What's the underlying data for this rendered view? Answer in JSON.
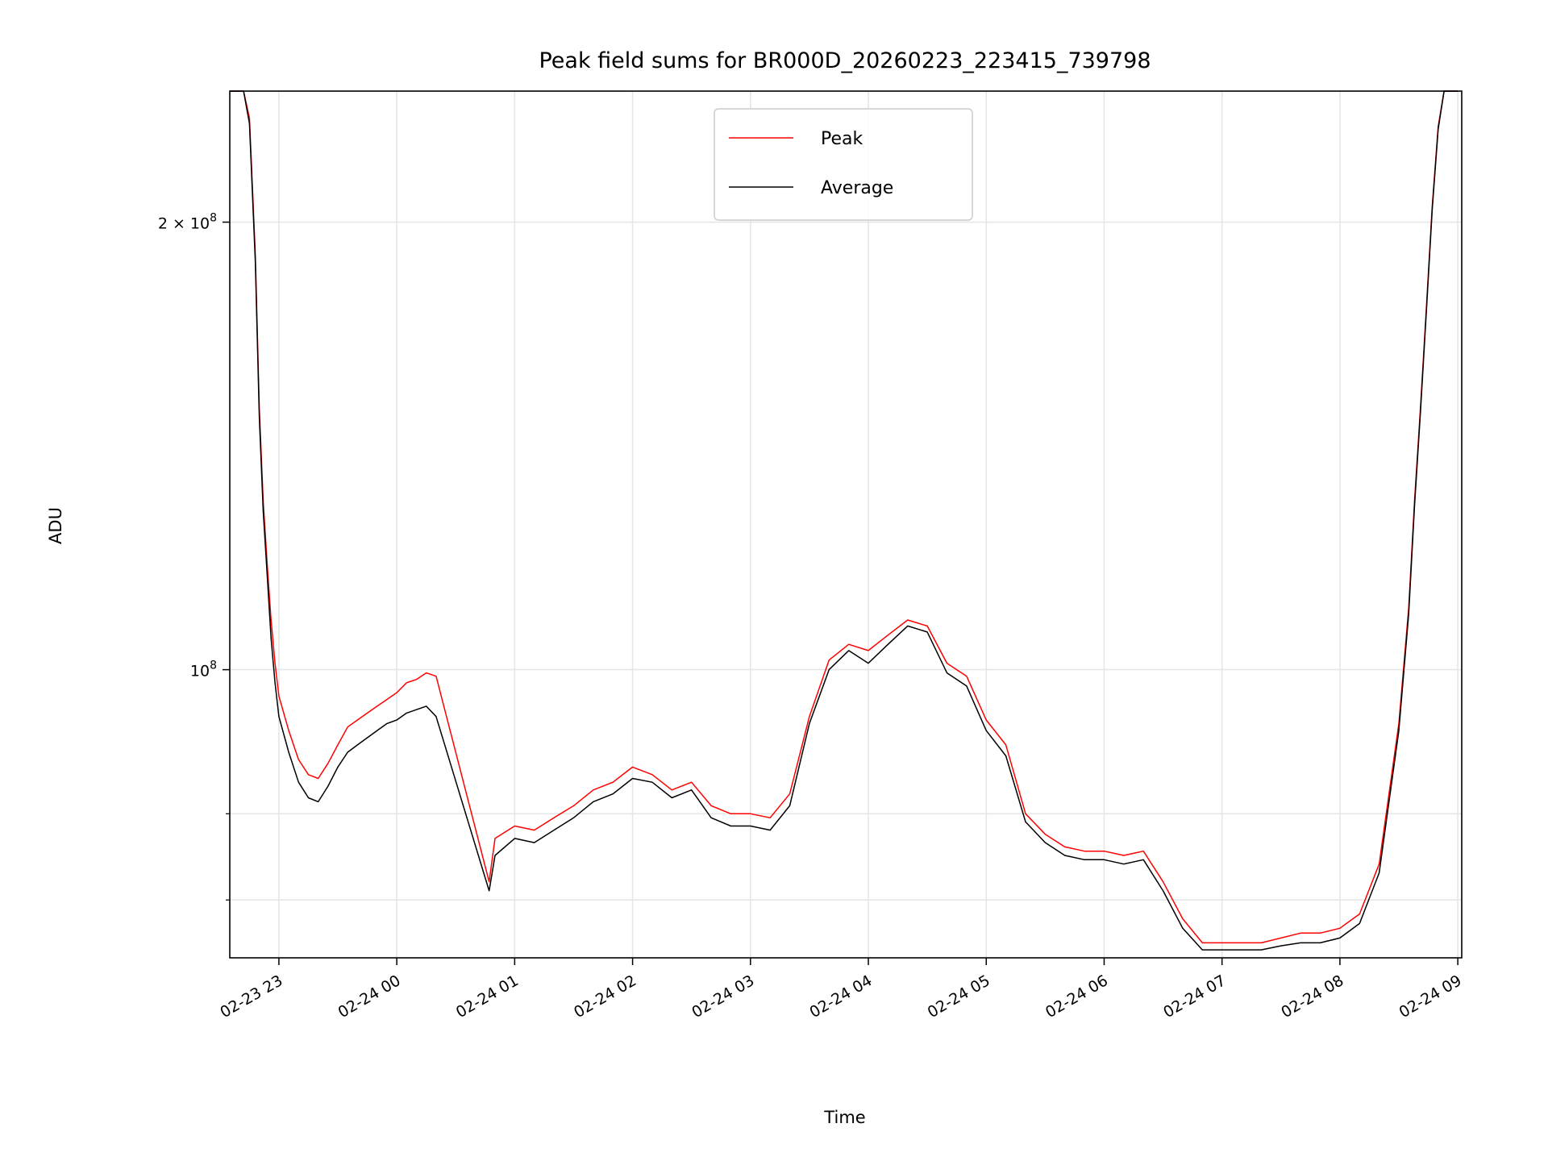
{
  "chart_data": {
    "type": "line",
    "title": "Peak field sums for BR000D_20260223_223415_739798",
    "xlabel": "Time",
    "ylabel": "ADU",
    "y_scale": "log",
    "ylim": [
      64000000,
      245000000
    ],
    "xlim": [
      "02-23 22:35",
      "02-24 09:02"
    ],
    "x_tick_labels": [
      "02-23 23",
      "02-24 00",
      "02-24 01",
      "02-24 02",
      "02-24 03",
      "02-24 04",
      "02-24 05",
      "02-24 06",
      "02-24 07",
      "02-24 08",
      "02-24 09"
    ],
    "x_tick_values": [
      "02-23 23:00",
      "02-24 00:00",
      "02-24 01:00",
      "02-24 02:00",
      "02-24 03:00",
      "02-24 04:00",
      "02-24 05:00",
      "02-24 06:00",
      "02-24 07:00",
      "02-24 08:00",
      "02-24 09:00"
    ],
    "y_tick_labels": [
      {
        "value": 200000000,
        "base": "2 × 10",
        "exp": "8"
      },
      {
        "value": 100000000,
        "base": "10",
        "exp": "8"
      }
    ],
    "y_minor_ticks": [
      70000000,
      80000000
    ],
    "grid": true,
    "legend": "top-center",
    "series": [
      {
        "name": "Peak",
        "color": "#ff0000",
        "x": [
          "02-23 22:35",
          "02-23 22:42",
          "02-23 22:45",
          "02-23 22:48",
          "02-23 22:50",
          "02-23 22:52",
          "02-23 22:54",
          "02-23 22:56",
          "02-23 22:58",
          "02-23 23:00",
          "02-23 23:05",
          "02-23 23:10",
          "02-23 23:15",
          "02-23 23:20",
          "02-23 23:25",
          "02-23 23:30",
          "02-23 23:35",
          "02-23 23:40",
          "02-23 23:45",
          "02-23 23:50",
          "02-23 23:55",
          "02-24 00:00",
          "02-24 00:05",
          "02-24 00:10",
          "02-24 00:15",
          "02-24 00:20",
          "02-24 00:47",
          "02-24 00:50",
          "02-24 01:00",
          "02-24 01:10",
          "02-24 01:20",
          "02-24 01:30",
          "02-24 01:40",
          "02-24 01:50",
          "02-24 02:00",
          "02-24 02:10",
          "02-24 02:20",
          "02-24 02:30",
          "02-24 02:40",
          "02-24 02:50",
          "02-24 03:00",
          "02-24 03:10",
          "02-24 03:20",
          "02-24 03:30",
          "02-24 03:40",
          "02-24 03:50",
          "02-24 04:00",
          "02-24 04:10",
          "02-24 04:20",
          "02-24 04:30",
          "02-24 04:40",
          "02-24 04:50",
          "02-24 05:00",
          "02-24 05:10",
          "02-24 05:20",
          "02-24 05:30",
          "02-24 05:40",
          "02-24 05:50",
          "02-24 06:00",
          "02-24 06:10",
          "02-24 06:20",
          "02-24 06:30",
          "02-24 06:40",
          "02-24 06:50",
          "02-24 07:00",
          "02-24 07:10",
          "02-24 07:20",
          "02-24 07:30",
          "02-24 07:40",
          "02-24 07:50",
          "02-24 08:00",
          "02-24 08:10",
          "02-24 08:20",
          "02-24 08:30",
          "02-24 08:35",
          "02-24 08:38",
          "02-24 08:41",
          "02-24 08:44",
          "02-24 08:47",
          "02-24 08:50",
          "02-24 08:53",
          "02-24 08:56",
          "02-24 09:00"
        ],
        "values": [
          245000000,
          245000000,
          235000000,
          190000000,
          150000000,
          130000000,
          118000000,
          108000000,
          101000000,
          96000000,
          91000000,
          87000000,
          85000000,
          84500000,
          86500000,
          89000000,
          91500000,
          92500000,
          93500000,
          94500000,
          95500000,
          96500000,
          98000000,
          98500000,
          99500000,
          99000000,
          72000000,
          77000000,
          78500000,
          78000000,
          79500000,
          81000000,
          83000000,
          84000000,
          86000000,
          85000000,
          83000000,
          84000000,
          81000000,
          80000000,
          80000000,
          79500000,
          82500000,
          93000000,
          101500000,
          104000000,
          103000000,
          105500000,
          108000000,
          107000000,
          101000000,
          99000000,
          92500000,
          89000000,
          80000000,
          77500000,
          76000000,
          75500000,
          75500000,
          75000000,
          75500000,
          72000000,
          68000000,
          65500000,
          65500000,
          65500000,
          65500000,
          66000000,
          66500000,
          66500000,
          67000000,
          68500000,
          74000000,
          92000000,
          110000000,
          130000000,
          150000000,
          175000000,
          205000000,
          232000000,
          245000000,
          245000000,
          245000000
        ]
      },
      {
        "name": "Average",
        "color": "#000000",
        "x": [
          "02-23 22:35",
          "02-23 22:42",
          "02-23 22:45",
          "02-23 22:48",
          "02-23 22:50",
          "02-23 22:52",
          "02-23 22:54",
          "02-23 22:56",
          "02-23 22:58",
          "02-23 23:00",
          "02-23 23:05",
          "02-23 23:10",
          "02-23 23:15",
          "02-23 23:20",
          "02-23 23:25",
          "02-23 23:30",
          "02-23 23:35",
          "02-23 23:40",
          "02-23 23:45",
          "02-23 23:50",
          "02-23 23:55",
          "02-24 00:00",
          "02-24 00:05",
          "02-24 00:10",
          "02-24 00:15",
          "02-24 00:20",
          "02-24 00:47",
          "02-24 00:50",
          "02-24 01:00",
          "02-24 01:10",
          "02-24 01:20",
          "02-24 01:30",
          "02-24 01:40",
          "02-24 01:50",
          "02-24 02:00",
          "02-24 02:10",
          "02-24 02:20",
          "02-24 02:30",
          "02-24 02:40",
          "02-24 02:50",
          "02-24 03:00",
          "02-24 03:10",
          "02-24 03:20",
          "02-24 03:30",
          "02-24 03:40",
          "02-24 03:50",
          "02-24 04:00",
          "02-24 04:10",
          "02-24 04:20",
          "02-24 04:30",
          "02-24 04:40",
          "02-24 04:50",
          "02-24 05:00",
          "02-24 05:10",
          "02-24 05:20",
          "02-24 05:30",
          "02-24 05:40",
          "02-24 05:50",
          "02-24 06:00",
          "02-24 06:10",
          "02-24 06:20",
          "02-24 06:30",
          "02-24 06:40",
          "02-24 06:50",
          "02-24 07:00",
          "02-24 07:10",
          "02-24 07:20",
          "02-24 07:30",
          "02-24 07:40",
          "02-24 07:50",
          "02-24 08:00",
          "02-24 08:10",
          "02-24 08:20",
          "02-24 08:30",
          "02-24 08:35",
          "02-24 08:38",
          "02-24 08:41",
          "02-24 08:44",
          "02-24 08:47",
          "02-24 08:50",
          "02-24 08:53",
          "02-24 08:56",
          "02-24 09:00"
        ],
        "values": [
          245000000,
          245000000,
          233000000,
          188000000,
          148000000,
          128000000,
          116000000,
          105000000,
          98000000,
          93000000,
          88000000,
          84000000,
          82000000,
          81500000,
          83500000,
          86000000,
          88000000,
          89000000,
          90000000,
          91000000,
          92000000,
          92500000,
          93500000,
          94000000,
          94500000,
          93000000,
          71000000,
          75000000,
          77000000,
          76500000,
          78000000,
          79500000,
          81500000,
          82500000,
          84500000,
          84000000,
          82000000,
          83000000,
          79500000,
          78500000,
          78500000,
          78000000,
          81000000,
          92000000,
          100000000,
          103000000,
          101000000,
          104000000,
          107000000,
          106000000,
          99500000,
          97500000,
          91000000,
          87500000,
          79000000,
          76500000,
          75000000,
          74500000,
          74500000,
          74000000,
          74500000,
          71000000,
          67000000,
          64800000,
          64800000,
          64800000,
          64800000,
          65200000,
          65500000,
          65500000,
          66000000,
          67500000,
          73000000,
          91000000,
          109000000,
          129000000,
          149000000,
          174000000,
          204000000,
          231000000,
          245000000,
          245000000,
          245000000
        ]
      }
    ]
  }
}
